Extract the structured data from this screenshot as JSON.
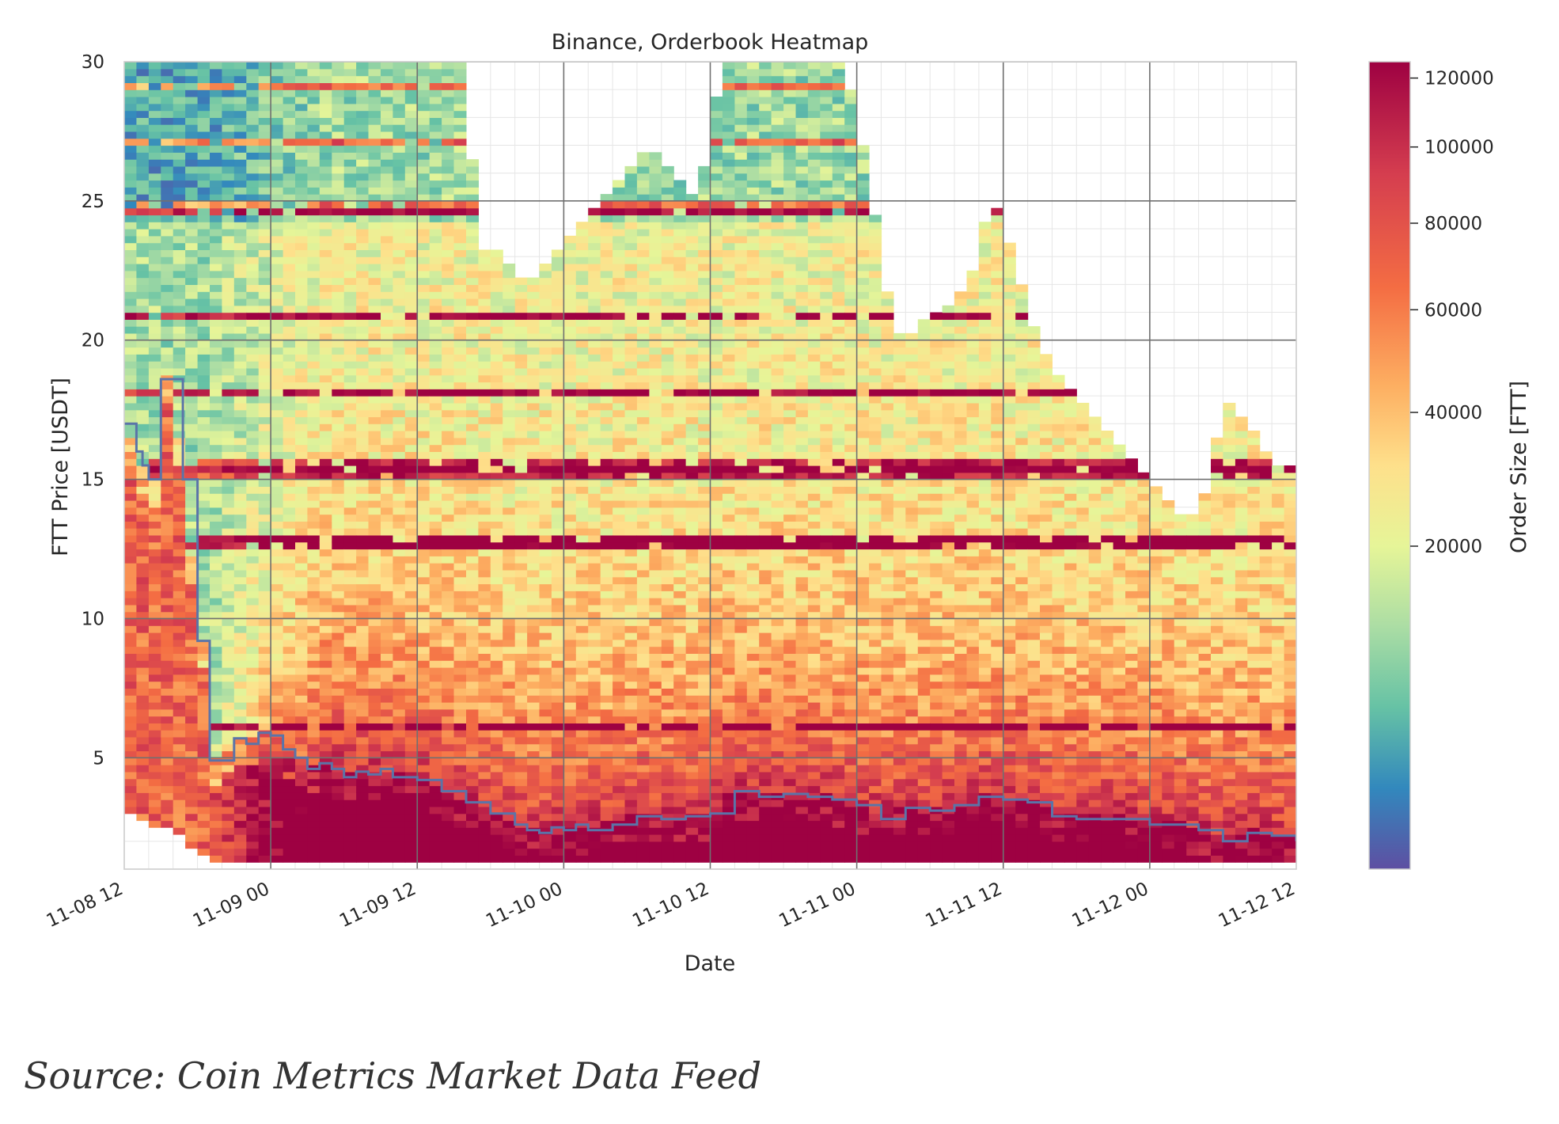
{
  "caption": "Source: Coin Metrics Market Data Feed",
  "chart_data": {
    "type": "heatmap",
    "title": "Binance, Orderbook Heatmap",
    "xlabel": "Date",
    "ylabel": "FTT Price [USDT]",
    "colorbar_label": "Order Size [FTT]",
    "colormap": "Spectral_r",
    "colorbar_ticks": [
      20000,
      40000,
      60000,
      80000,
      100000,
      120000
    ],
    "colorbar_tick_labels": [
      "20000",
      "40000",
      "60000",
      "80000",
      "100000",
      "120000"
    ],
    "color_range": [
      0,
      125000
    ],
    "x_tick_labels": [
      "11-08 12",
      "11-09 00",
      "11-09 12",
      "11-10 00",
      "11-10 12",
      "11-11 00",
      "11-11 12",
      "11-12 00",
      "11-12 12"
    ],
    "x_range_hours": [
      0,
      96
    ],
    "y_ticks": [
      5,
      10,
      15,
      20,
      25,
      30
    ],
    "ylim": [
      1,
      30
    ],
    "grid": true,
    "price_line_color": "#5b74a8",
    "price_series": {
      "name": "",
      "x": [
        0,
        1,
        1.5,
        2,
        2.8,
        3,
        4,
        4.8,
        5,
        6,
        6.5,
        7,
        8,
        9,
        10,
        11,
        12,
        13,
        14,
        15,
        16,
        17,
        18,
        19,
        20,
        21,
        22,
        24,
        26,
        28,
        30,
        32,
        33,
        34,
        35,
        36,
        37,
        38,
        40,
        42,
        44,
        46,
        48,
        50,
        52,
        54,
        56,
        58,
        60,
        62,
        64,
        66,
        68,
        70,
        72,
        74,
        76,
        78,
        80,
        82,
        84,
        86,
        88,
        90,
        92,
        94,
        96
      ],
      "y": [
        17,
        16,
        15.5,
        15,
        15,
        18.6,
        18.6,
        15,
        15,
        9.2,
        9.2,
        4.9,
        4.9,
        5.7,
        5.5,
        5.9,
        5.8,
        5.3,
        5,
        4.6,
        4.8,
        4.6,
        4.3,
        4.5,
        4.4,
        4.6,
        4.3,
        4.2,
        3.8,
        3.4,
        3.0,
        2.6,
        2.4,
        2.3,
        2.5,
        2.4,
        2.6,
        2.4,
        2.6,
        2.9,
        2.8,
        2.9,
        3.0,
        3.8,
        3.6,
        3.7,
        3.6,
        3.5,
        3.3,
        2.8,
        3.2,
        3.1,
        3.3,
        3.6,
        3.5,
        3.4,
        2.9,
        2.8,
        2.8,
        2.8,
        2.6,
        2.6,
        2.4,
        2.0,
        2.3,
        2.2,
        2.0
      ]
    },
    "orderbook_top_edge": {
      "x": [
        0,
        14,
        28,
        29,
        30,
        33,
        35,
        37,
        39,
        41,
        43,
        45,
        47,
        49,
        51,
        53,
        55,
        57,
        59,
        61,
        62,
        63,
        64,
        65,
        66,
        68,
        70,
        71,
        72,
        73,
        74,
        75,
        76,
        77,
        78,
        79,
        80,
        81,
        82,
        83,
        84,
        85,
        86,
        87,
        88,
        89,
        90,
        91,
        92,
        93,
        94,
        95,
        96
      ],
      "y": [
        30,
        30,
        30,
        23,
        23.5,
        22,
        23,
        24,
        25,
        26,
        27,
        26,
        25,
        30,
        30,
        30,
        30,
        30,
        30,
        26,
        23,
        20.5,
        20,
        20.5,
        21,
        21.5,
        23,
        25.5,
        24,
        23,
        21,
        20,
        19,
        18.5,
        18,
        17.5,
        17,
        16.5,
        16,
        15.5,
        15,
        14.5,
        14,
        13.5,
        14,
        15,
        18,
        17.5,
        17,
        16.5,
        15.5,
        15.5,
        15.5
      ]
    },
    "orderbook_bottom_edge": {
      "x": [
        0,
        3,
        5,
        6,
        7,
        96
      ],
      "y": [
        3,
        2.4,
        1.9,
        1.6,
        1.1,
        1.1
      ]
    }
  }
}
